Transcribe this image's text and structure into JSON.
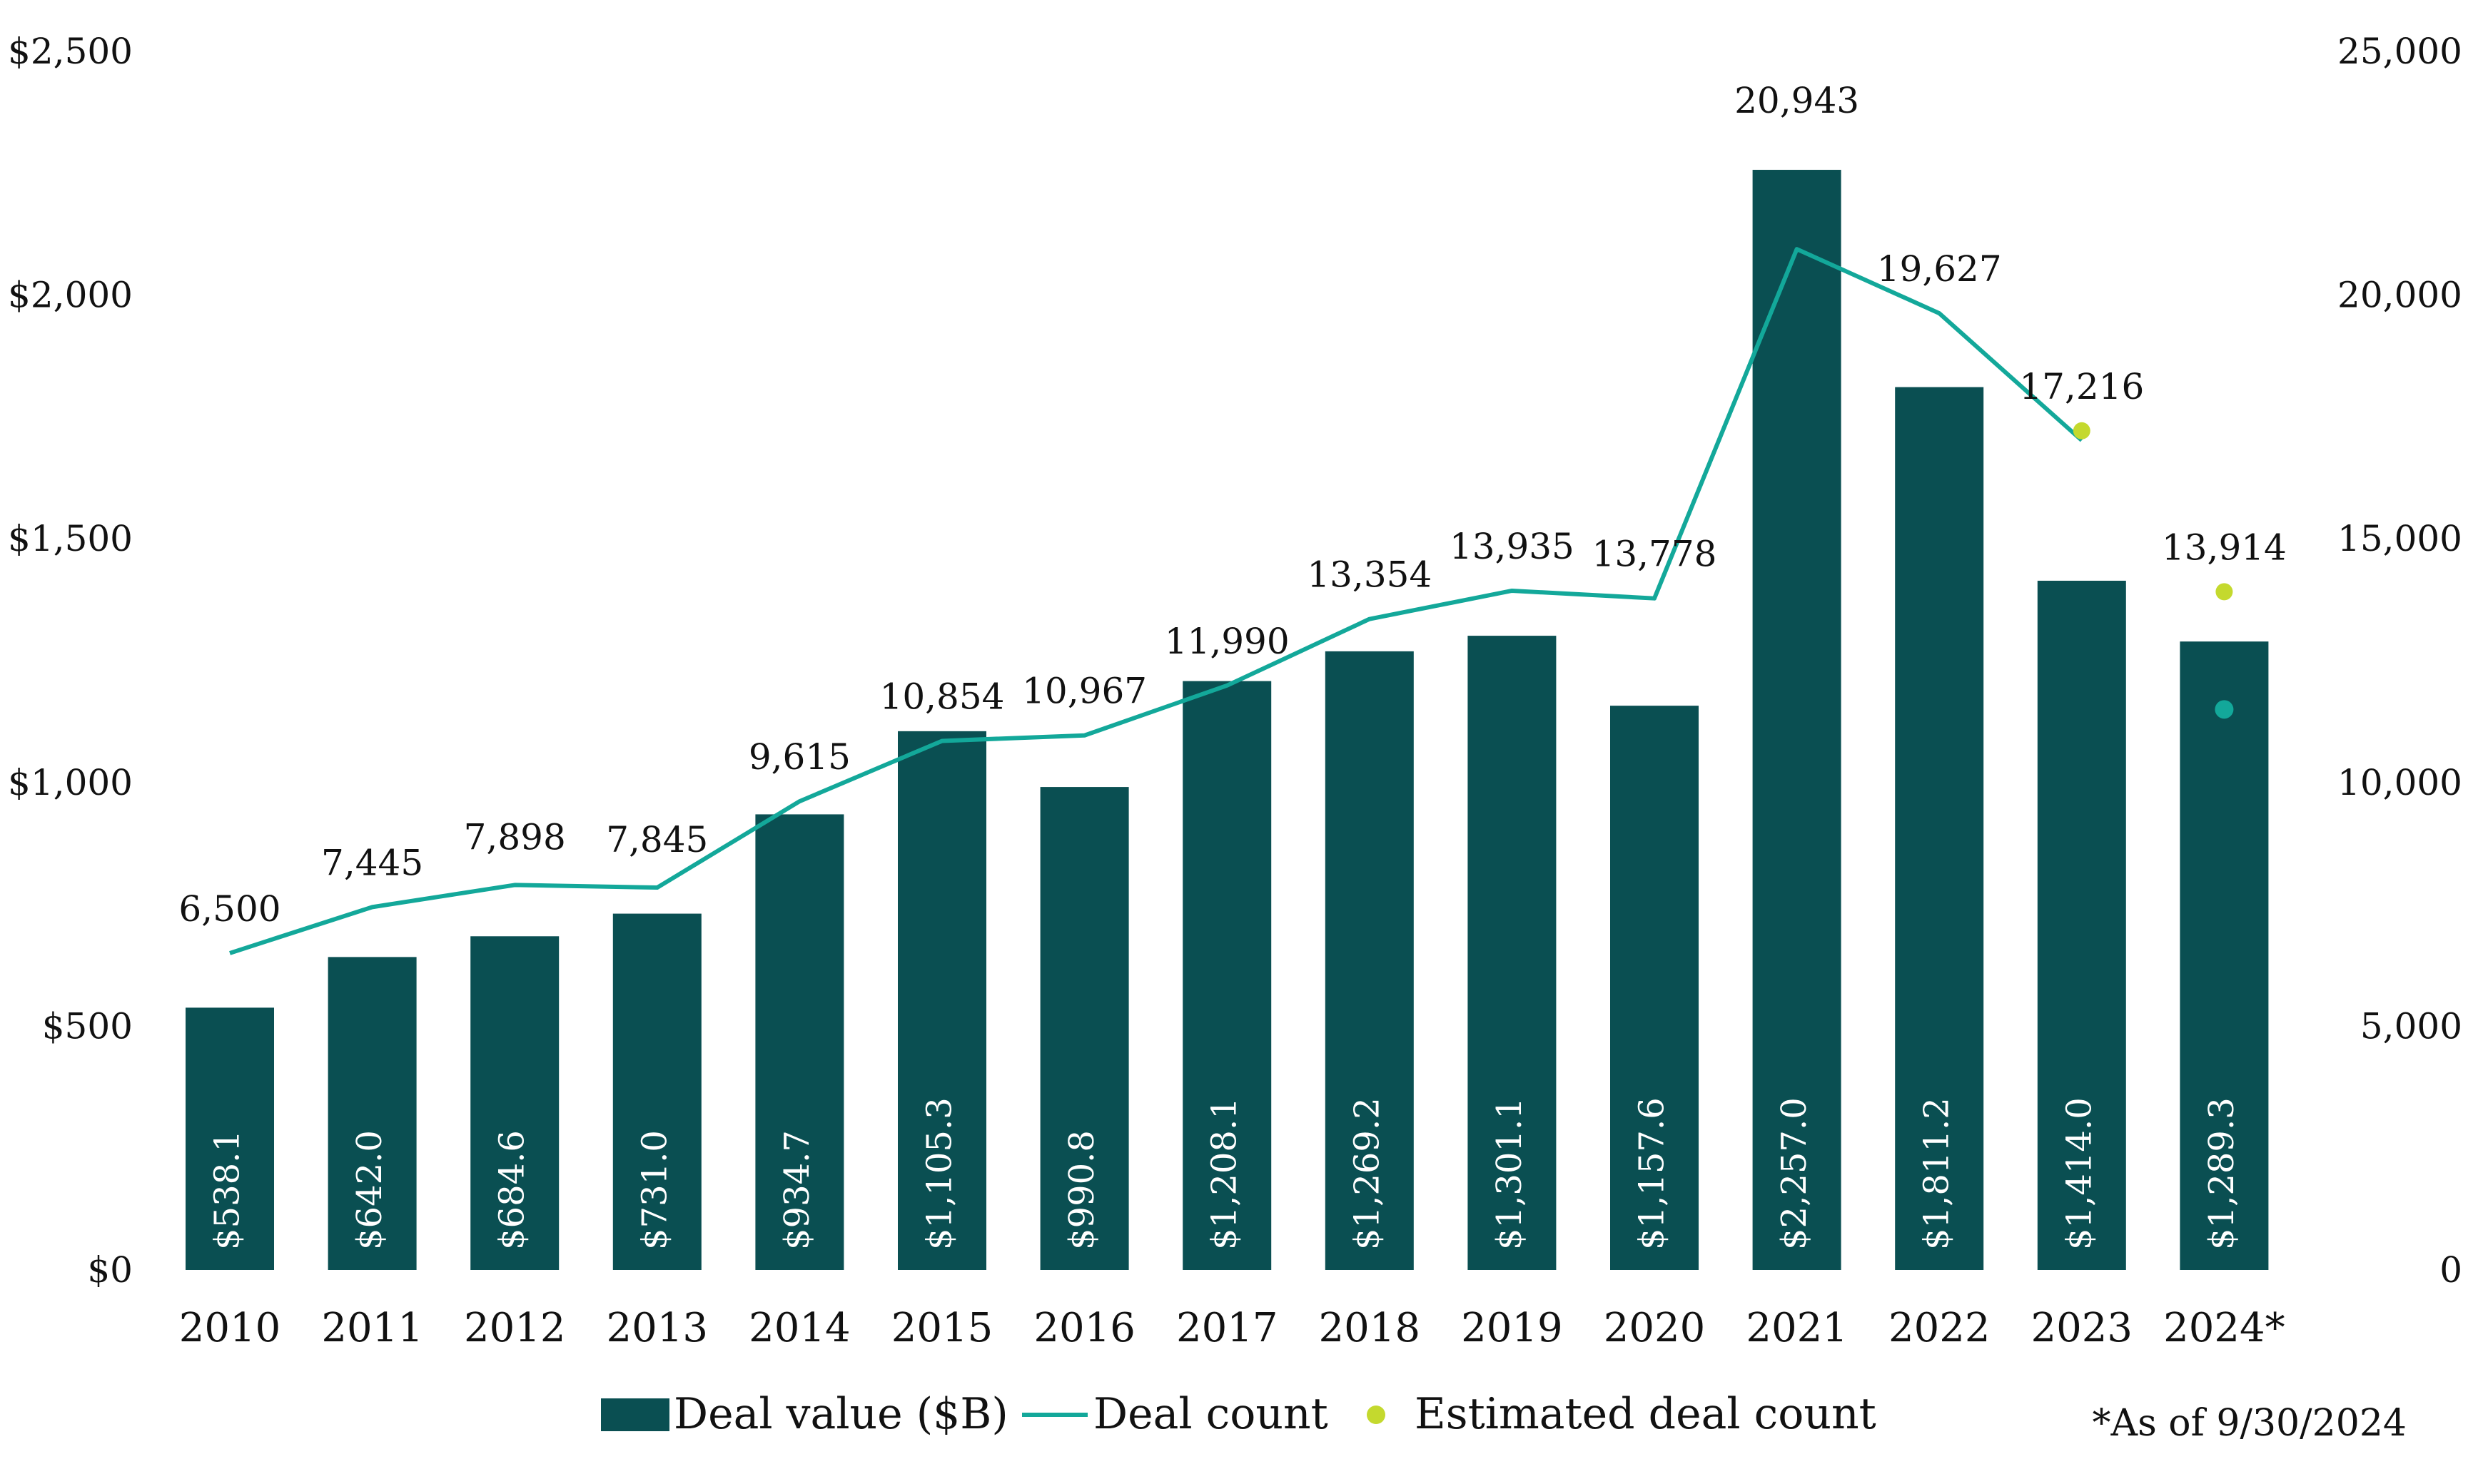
{
  "chart_data": {
    "type": "bar",
    "categories": [
      "2010",
      "2011",
      "2012",
      "2013",
      "2014",
      "2015",
      "2016",
      "2017",
      "2018",
      "2019",
      "2020",
      "2021",
      "2022",
      "2023",
      "2024*"
    ],
    "series": [
      {
        "name": "Deal value ($B)",
        "type": "bar",
        "axis": "left",
        "values": [
          538.1,
          642.0,
          684.6,
          731.0,
          934.7,
          1105.3,
          990.8,
          1208.1,
          1269.2,
          1301.1,
          1157.6,
          2257.0,
          1811.2,
          1414.0,
          1289.3
        ],
        "labels": [
          "$538.1",
          "$642.0",
          "$684.6",
          "$731.0",
          "$934.7",
          "$1,105.3",
          "$990.8",
          "$1,208.1",
          "$1,269.2",
          "$1,301.1",
          "$1,157.6",
          "$2,257.0",
          "$1,811.2",
          "$1,414.0",
          "$1,289.3"
        ],
        "color": "#0a4f52"
      },
      {
        "name": "Deal count",
        "type": "line",
        "axis": "right",
        "values": [
          6500,
          7445,
          7898,
          7845,
          9615,
          10854,
          10967,
          11990,
          13354,
          13935,
          13778,
          20943,
          19627,
          17020,
          11500
        ],
        "labels": [
          "6,500",
          "7,445",
          "7,898",
          "7,845",
          "9,615",
          "10,854",
          "10,967",
          "11,990",
          "13,354",
          "13,935",
          "13,778",
          "20,943",
          "19,627",
          "",
          ""
        ],
        "color": "#13a89a"
      },
      {
        "name": "Estimated deal count",
        "type": "scatter",
        "axis": "right",
        "points": [
          {
            "category": "2023",
            "value": 17216,
            "label": "17,216"
          },
          {
            "category": "2024*",
            "value": 13914,
            "label": "13,914"
          }
        ],
        "color": "#c4d92e"
      }
    ],
    "y_left": {
      "ylim": [
        0,
        2500
      ],
      "ticks": [
        0,
        500,
        1000,
        1500,
        2000,
        2500
      ],
      "tick_labels": [
        "$0",
        "$500",
        "$1,000",
        "$1,500",
        "$2,000",
        "$2,500"
      ]
    },
    "y_right": {
      "ylim": [
        0,
        25000
      ],
      "ticks": [
        0,
        5000,
        10000,
        15000,
        20000,
        25000
      ],
      "tick_labels": [
        "0",
        "5,000",
        "10,000",
        "15,000",
        "20,000",
        "25,000"
      ]
    },
    "grid": false,
    "legend": {
      "position": "bottom-center",
      "entries": [
        "Deal value ($B)",
        "Deal count",
        "Estimated deal count"
      ]
    },
    "footnote": "*As of 9/30/2024"
  }
}
